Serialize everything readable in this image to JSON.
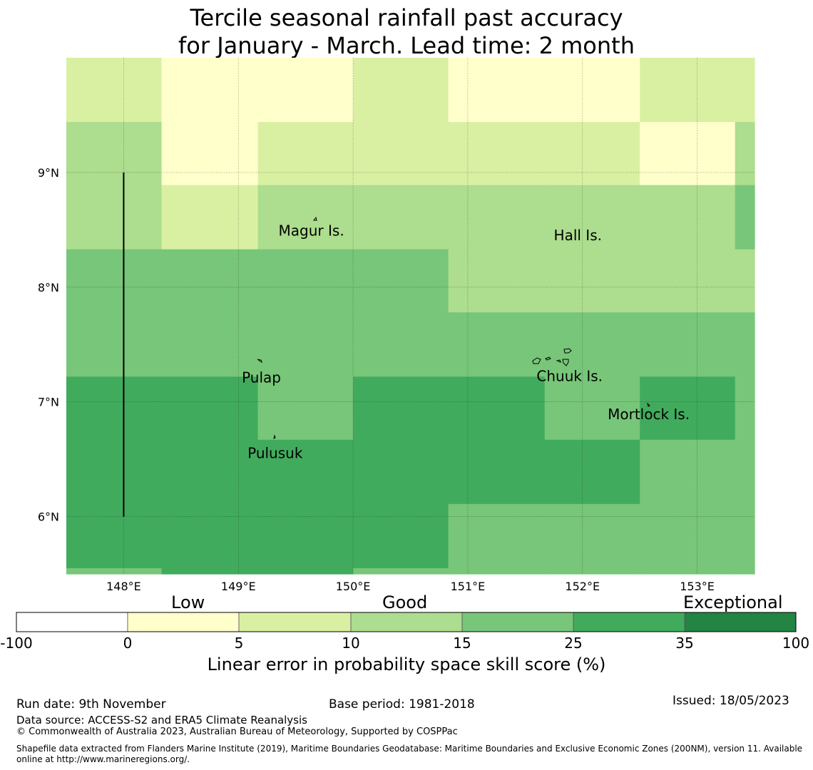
{
  "title_line1": "Tercile seasonal rainfall past accuracy",
  "title_line2": "for January - March. Lead time: 2 month",
  "axes": {
    "lon_labels": [
      "148°E",
      "149°E",
      "150°E",
      "151°E",
      "152°E",
      "153°E"
    ],
    "lat_labels": [
      "9°N",
      "8°N",
      "7°N",
      "6°N"
    ]
  },
  "colors": {
    "c0": "#ffffff",
    "c1": "#ffffcc",
    "c2": "#d9f0a3",
    "c3": "#addd8e",
    "c4": "#78c679",
    "c5": "#41ab5d",
    "c6": "#238443"
  },
  "grid": {
    "lon_edges": [
      147.5,
      148.33,
      149.17,
      150.0,
      150.83,
      151.67,
      152.5,
      153.33,
      153.5
    ],
    "lat_edges": [
      10.0,
      9.44,
      8.89,
      8.33,
      7.78,
      7.22,
      6.67,
      6.11,
      5.55,
      5.5
    ],
    "rows": [
      [
        2,
        1,
        1,
        2,
        1,
        1,
        2,
        2
      ],
      [
        3,
        1,
        2,
        2,
        2,
        2,
        1,
        3
      ],
      [
        3,
        2,
        3,
        3,
        3,
        3,
        3,
        4
      ],
      [
        4,
        4,
        4,
        4,
        3,
        3,
        3,
        3
      ],
      [
        4,
        4,
        4,
        4,
        4,
        4,
        4,
        4
      ],
      [
        5,
        5,
        4,
        5,
        5,
        4,
        5,
        4
      ],
      [
        5,
        5,
        5,
        5,
        5,
        5,
        4,
        4
      ],
      [
        5,
        5,
        5,
        5,
        4,
        4,
        4,
        4
      ],
      [
        4,
        5,
        5,
        4,
        4,
        4,
        4,
        4
      ]
    ]
  },
  "places": [
    {
      "name": "Magur Is.",
      "lon": 149.35,
      "lat": 8.5
    },
    {
      "name": "Hall Is.",
      "lon": 151.75,
      "lat": 8.46
    },
    {
      "name": "Pulap",
      "lon": 149.03,
      "lat": 7.22
    },
    {
      "name": "Chuuk Is.",
      "lon": 151.6,
      "lat": 7.23
    },
    {
      "name": "Mortlock Is.",
      "lon": 152.22,
      "lat": 6.9
    },
    {
      "name": "Pulusuk",
      "lon": 149.08,
      "lat": 6.56
    }
  ],
  "boundary_line": {
    "lon": 148.0,
    "lat_from": 9.0,
    "lat_to": 6.0
  },
  "colorbar": {
    "categories": [
      "Low",
      "Good",
      "Exceptional"
    ],
    "ticks": [
      "-100",
      "0",
      "5",
      "10",
      "15",
      "25",
      "35",
      "100"
    ],
    "label": "Linear error in probability space skill score (%)"
  },
  "footer": {
    "run_date": "Run date: 9th November",
    "base_period": "Base period: 1981-2018",
    "issued": "Issued: 18/05/2023",
    "data_source": "Data source: ACCESS-S2 and ERA5 Climate Reanalysis",
    "copyright": "© Commonwealth of Australia 2023, Australian Bureau of Meteorology, Supported by COSPPac",
    "shapefile_line1": "Shapefile data extracted from Flanders Marine Institute (2019), Maritime Boundaries Geodatabase: Maritime Boundaries and Exclusive Economic Zones (200NM), version 11. Available",
    "shapefile_line2": "online at http://www.marineregions.org/."
  }
}
